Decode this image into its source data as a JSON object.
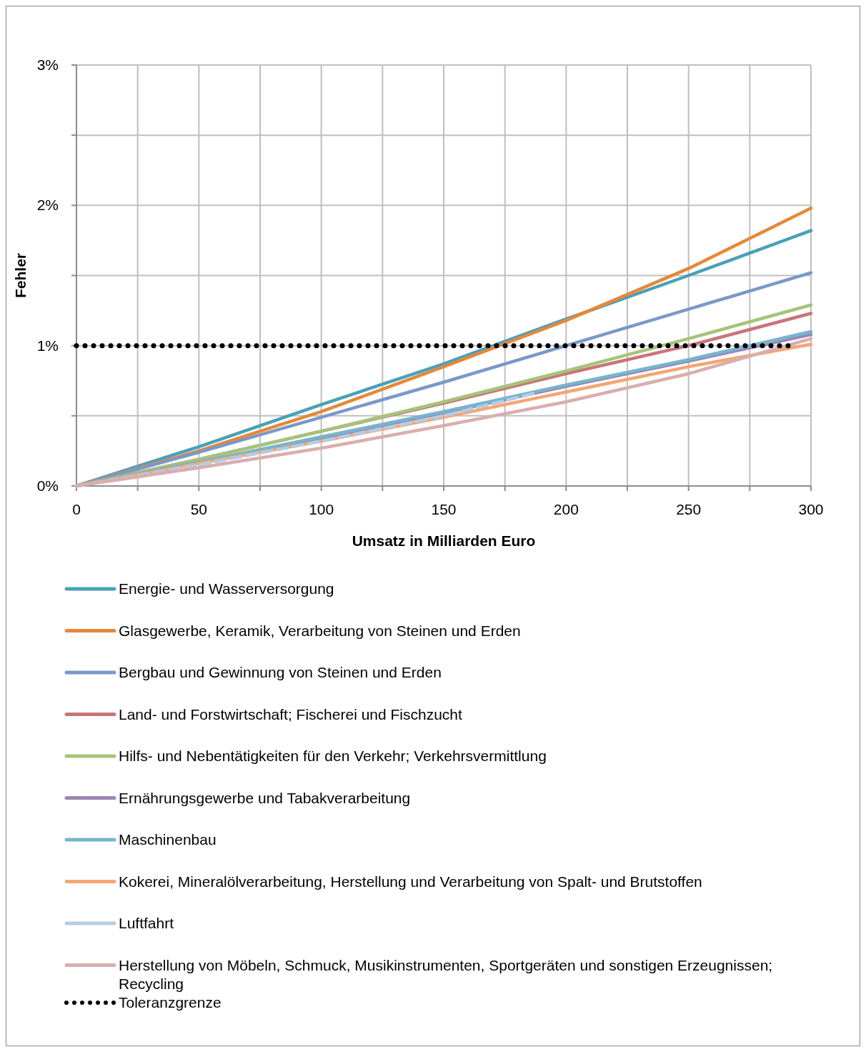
{
  "chart_data": {
    "type": "line",
    "xlabel": "Umsatz in Milliarden Euro",
    "ylabel": "Fehler",
    "x": [
      0,
      50,
      100,
      150,
      200,
      250,
      300
    ],
    "xlim": [
      0,
      300
    ],
    "xticks": [
      0,
      {
        "value": 25,
        "label": null
      },
      50,
      {
        "value": 75,
        "label": null
      },
      100,
      {
        "value": 125,
        "label": null
      },
      150,
      {
        "value": 175,
        "label": null
      },
      200,
      {
        "value": 225,
        "label": null
      },
      250,
      {
        "value": 275,
        "label": null
      },
      300
    ],
    "ylim": [
      0,
      3
    ],
    "yticks": [
      {
        "value": 0,
        "label": "0%"
      },
      {
        "value": 0.5,
        "label": null
      },
      {
        "value": 1,
        "label": "1%"
      },
      {
        "value": 1.5,
        "label": null
      },
      {
        "value": 2,
        "label": "2%"
      },
      {
        "value": 2.5,
        "label": null
      },
      {
        "value": 3,
        "label": "3%"
      }
    ],
    "grid": true,
    "legend": "bottom",
    "marker": "none",
    "series": [
      {
        "name": "Energie- und Wasserversorgung",
        "color": "#4aa0b8",
        "values": [
          0,
          0.28,
          0.58,
          0.87,
          1.19,
          1.5,
          1.82
        ]
      },
      {
        "name": "Glasgewerbe, Keramik, Verarbeitung von Steinen und Erden",
        "color": "#e6883a",
        "values": [
          0,
          0.25,
          0.53,
          0.85,
          1.18,
          1.55,
          1.98
        ]
      },
      {
        "name": "Bergbau und Gewinnung von Steinen und Erden",
        "color": "#7b98c8",
        "values": [
          0,
          0.24,
          0.49,
          0.74,
          1.0,
          1.26,
          1.52
        ]
      },
      {
        "name": "Land- und Forstwirtschaft; Fischerei und Fischzucht",
        "color": "#c8757a",
        "values": [
          0,
          0.19,
          0.39,
          0.59,
          0.8,
          1.0,
          1.23
        ]
      },
      {
        "name": "Hilfs- und Nebentätigkeiten für den Verkehr; Verkehrsvermittlung",
        "color": "#a5c47a",
        "values": [
          0,
          0.19,
          0.39,
          0.6,
          0.82,
          1.05,
          1.29
        ]
      },
      {
        "name": "Ernährungsgewerbe und Tabakverarbeitung",
        "color": "#9b86b6",
        "values": [
          0,
          0.17,
          0.34,
          0.52,
          0.71,
          0.89,
          1.08
        ]
      },
      {
        "name": "Maschinenbau",
        "color": "#76b6cc",
        "values": [
          0,
          0.17,
          0.35,
          0.53,
          0.72,
          0.9,
          1.1
        ]
      },
      {
        "name": "Kokerei, Mineralölverarbeitung, Herstellung und Verarbeitung von Spalt- und Brutstoffen",
        "color": "#f5a673",
        "values": [
          0,
          0.16,
          0.32,
          0.49,
          0.67,
          0.85,
          1.01
        ]
      },
      {
        "name": "Luftfahrt",
        "color": "#b6cce4",
        "x": [
          0,
          50,
          100,
          150,
          187
        ],
        "values": [
          0,
          0.15,
          0.32,
          0.5,
          0.66
        ],
        "line_style": "dashed"
      },
      {
        "name": "Herstellung von Möbeln, Schmuck, Musikinstrumenten, Sportgeräten und sonstigen Erzeugnissen; Recycling",
        "color": "#d9aeae",
        "values": [
          0,
          0.13,
          0.27,
          0.43,
          0.6,
          0.8,
          1.05
        ]
      },
      {
        "name": "Toleranzgrenze",
        "color": "#000000",
        "x": [
          0,
          293
        ],
        "values": [
          1,
          1
        ],
        "line_style": "dotted"
      }
    ]
  }
}
